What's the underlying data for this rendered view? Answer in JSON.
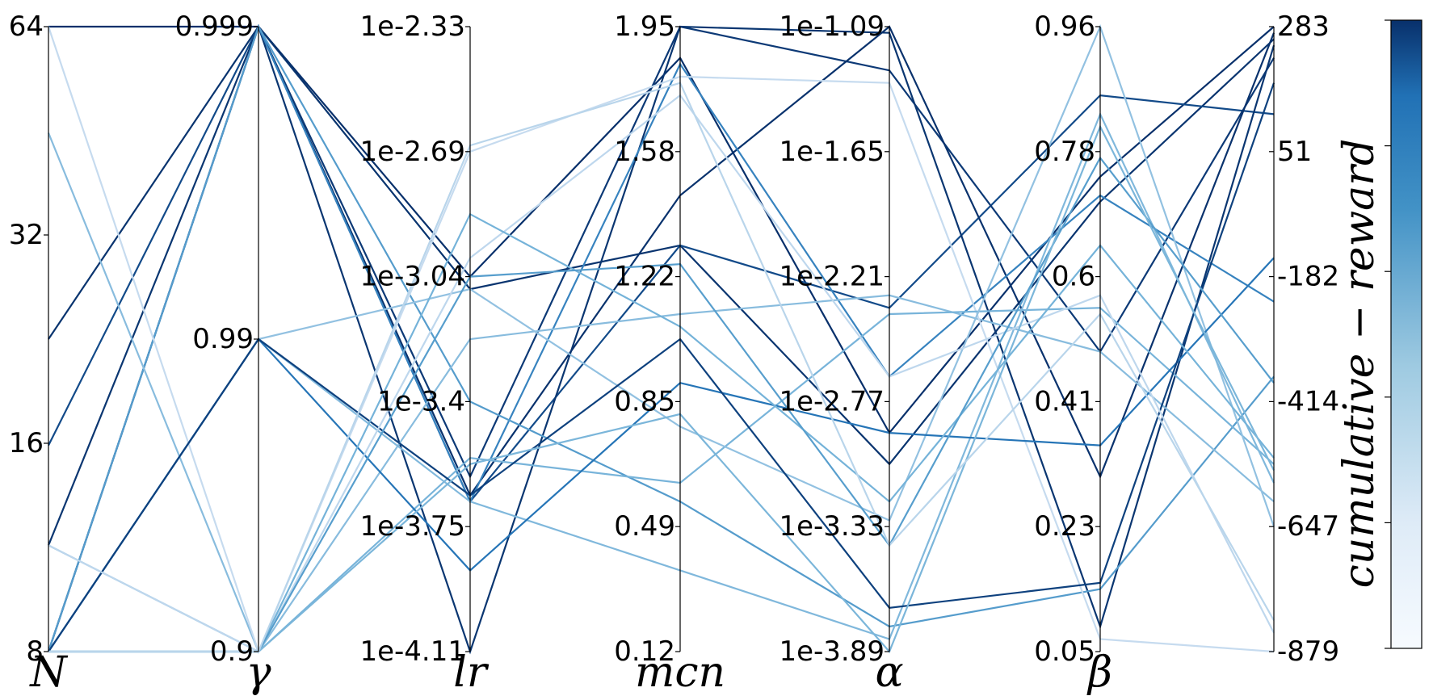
{
  "chart_data": {
    "type": "parallel_coordinates",
    "colormap": "Blues",
    "colors": {
      "low": "#f7fbff",
      "mid": "#6baed6",
      "high": "#08306b",
      "axis": "#000000"
    },
    "axes": [
      {
        "name": "N",
        "ticks": [
          "64",
          "32",
          "16",
          "8"
        ],
        "tick_values": [
          64,
          32,
          16,
          8
        ],
        "scale": "log2",
        "range": [
          8,
          64
        ]
      },
      {
        "name": "γ",
        "ticks": [
          "0.999",
          "0.99",
          "0.9"
        ],
        "tick_values": [
          0.999,
          0.99,
          0.9
        ],
        "scale": "categorical_positions",
        "tick_fractions": [
          1.0,
          0.5,
          0.0
        ]
      },
      {
        "name": "lr",
        "ticks": [
          "1e-2.33",
          "1e-2.69",
          "1e-3.04",
          "1e-3.4",
          "1e-3.75",
          "1e-4.11"
        ],
        "tick_values": [
          -2.33,
          -2.69,
          -3.04,
          -3.4,
          -3.75,
          -4.11
        ],
        "scale": "log10",
        "range": [
          -4.11,
          -2.33
        ]
      },
      {
        "name": "mcn",
        "ticks": [
          "1.95",
          "1.58",
          "1.22",
          "0.85",
          "0.49",
          "0.12"
        ],
        "tick_values": [
          1.95,
          1.58,
          1.22,
          0.85,
          0.49,
          0.12
        ],
        "scale": "linear",
        "range": [
          0.12,
          1.95
        ]
      },
      {
        "name": "α",
        "ticks": [
          "1e-1.09",
          "1e-1.65",
          "1e-2.21",
          "1e-2.77",
          "1e-3.33",
          "1e-3.89"
        ],
        "tick_values": [
          -1.09,
          -1.65,
          -2.21,
          -2.77,
          -3.33,
          -3.89
        ],
        "scale": "log10",
        "range": [
          -3.89,
          -1.09
        ]
      },
      {
        "name": "β",
        "ticks": [
          "0.96",
          "0.78",
          "0.6",
          "0.41",
          "0.23",
          "0.05"
        ],
        "tick_values": [
          0.96,
          0.78,
          0.6,
          0.41,
          0.23,
          0.05
        ],
        "scale": "linear",
        "range": [
          0.05,
          0.96
        ]
      }
    ],
    "color_axis": {
      "label": "cumulative − reward",
      "ticks": [
        "283",
        "51",
        "-182",
        "-414",
        "-647",
        "-879"
      ],
      "tick_values": [
        283,
        51,
        -182,
        -414,
        -647,
        -879
      ],
      "range": [
        -879,
        283
      ]
    },
    "note": "lines values are given as fractions of each axis (0 = bottom, 1 = top); last value is the reward fraction",
    "lines": [
      [
        1.0,
        1.0,
        0.6,
        0.95,
        0.35,
        0.76,
        1.0
      ],
      [
        0.5,
        1.0,
        0.58,
        0.65,
        0.3,
        0.72,
        0.98
      ],
      [
        0.33,
        1.0,
        0.24,
        0.65,
        0.55,
        0.89,
        0.86
      ],
      [
        0.0,
        1.0,
        0.28,
        1.0,
        0.93,
        0.48,
        0.95
      ],
      [
        0.17,
        1.0,
        0.0,
        1.0,
        0.99,
        0.04,
        0.97
      ],
      [
        0.0,
        1.0,
        0.25,
        0.73,
        1.0,
        0.28,
        0.99
      ],
      [
        0.0,
        1.0,
        0.24,
        0.94,
        0.44,
        0.73,
        0.56
      ],
      [
        0.0,
        1.0,
        0.4,
        0.24,
        0.04,
        0.1,
        0.44
      ],
      [
        0.83,
        0.0,
        0.5,
        0.54,
        0.57,
        0.48,
        0.24
      ],
      [
        1.0,
        0.0,
        0.8,
        0.92,
        0.91,
        0.02,
        0.0
      ],
      [
        0.17,
        0.0,
        0.31,
        0.27,
        0.54,
        0.55,
        0.3
      ],
      [
        0.0,
        0.5,
        0.58,
        0.36,
        0.21,
        1.0,
        0.2
      ],
      [
        0.0,
        0.5,
        0.24,
        0.13,
        0.02,
        0.86,
        0.27
      ],
      [
        0.0,
        0.5,
        0.13,
        0.43,
        0.35,
        0.33,
        0.63
      ],
      [
        0.0,
        0.5,
        0.25,
        0.5,
        0.07,
        0.11,
        0.91
      ],
      [
        0.17,
        0.0,
        0.63,
        0.89,
        0.44,
        0.57,
        0.03
      ],
      [
        0.0,
        0.0,
        0.7,
        0.52,
        0.24,
        0.65,
        0.31
      ],
      [
        0.0,
        0.0,
        0.6,
        0.62,
        0.17,
        0.79,
        0.43
      ],
      [
        0.0,
        0.0,
        0.3,
        0.38,
        0.0,
        0.84,
        0.29
      ],
      [
        0.0,
        0.0,
        0.81,
        0.91,
        0.17,
        0.54,
        0.05
      ]
    ]
  }
}
